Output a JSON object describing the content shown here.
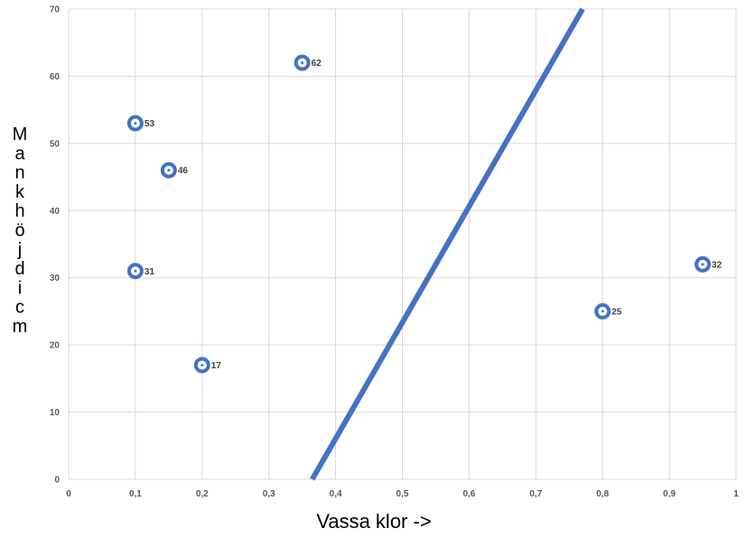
{
  "chart_data": {
    "type": "scatter",
    "xlabel": "Vassa klor ->",
    "ylabel": "Mankhöjd i cm",
    "xlim": [
      0,
      1
    ],
    "ylim": [
      0,
      70
    ],
    "x_ticks": [
      "0",
      "0,1",
      "0,2",
      "0,3",
      "0,4",
      "0,5",
      "0,6",
      "0,7",
      "0,8",
      "0,9",
      "1"
    ],
    "y_ticks": [
      "0",
      "10",
      "20",
      "30",
      "40",
      "50",
      "60",
      "70"
    ],
    "grid": true,
    "colors": {
      "marker": "#4472C4",
      "line": "#4472C4",
      "grid": "#d9d9d9"
    },
    "points": [
      {
        "x": 0.1,
        "y": 53,
        "label": "53"
      },
      {
        "x": 0.15,
        "y": 46,
        "label": "46"
      },
      {
        "x": 0.35,
        "y": 62,
        "label": "62"
      },
      {
        "x": 0.1,
        "y": 31,
        "label": "31"
      },
      {
        "x": 0.2,
        "y": 17,
        "label": "17"
      },
      {
        "x": 0.8,
        "y": 25,
        "label": "25"
      },
      {
        "x": 0.95,
        "y": 32,
        "label": "32"
      }
    ],
    "line": {
      "x": [
        0.365,
        0.77
      ],
      "y": [
        0,
        70
      ]
    }
  }
}
